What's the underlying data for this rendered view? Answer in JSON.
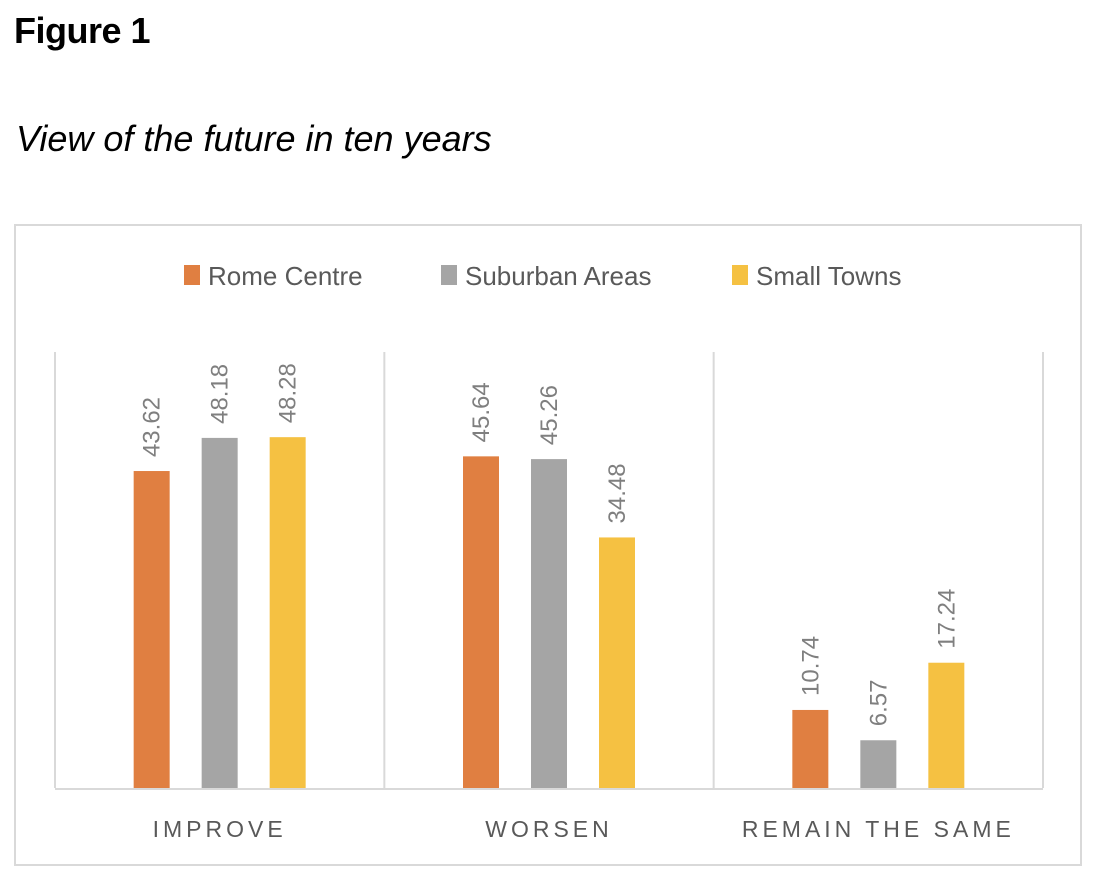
{
  "figure": {
    "label": "Figure 1",
    "title": "View of the future in ten years"
  },
  "chart_data": {
    "type": "bar",
    "title": "View of the future in ten years",
    "xlabel": "",
    "ylabel": "",
    "categories": [
      "IMPROVE",
      "WORSEN",
      "REMAIN THE SAME"
    ],
    "series": [
      {
        "name": "Rome Centre",
        "color": "#E07F41",
        "values": [
          43.62,
          45.64,
          10.74
        ]
      },
      {
        "name": "Suburban Areas",
        "color": "#A5A5A5",
        "values": [
          48.18,
          45.26,
          6.57
        ]
      },
      {
        "name": "Small Towns",
        "color": "#F5C142",
        "values": [
          48.28,
          34.48,
          17.24
        ]
      }
    ],
    "ylim": [
      0,
      60
    ],
    "grid": false,
    "y_axis_visible": false,
    "data_labels": true,
    "data_label_orientation": "vertical",
    "legend_position": "top-center"
  }
}
